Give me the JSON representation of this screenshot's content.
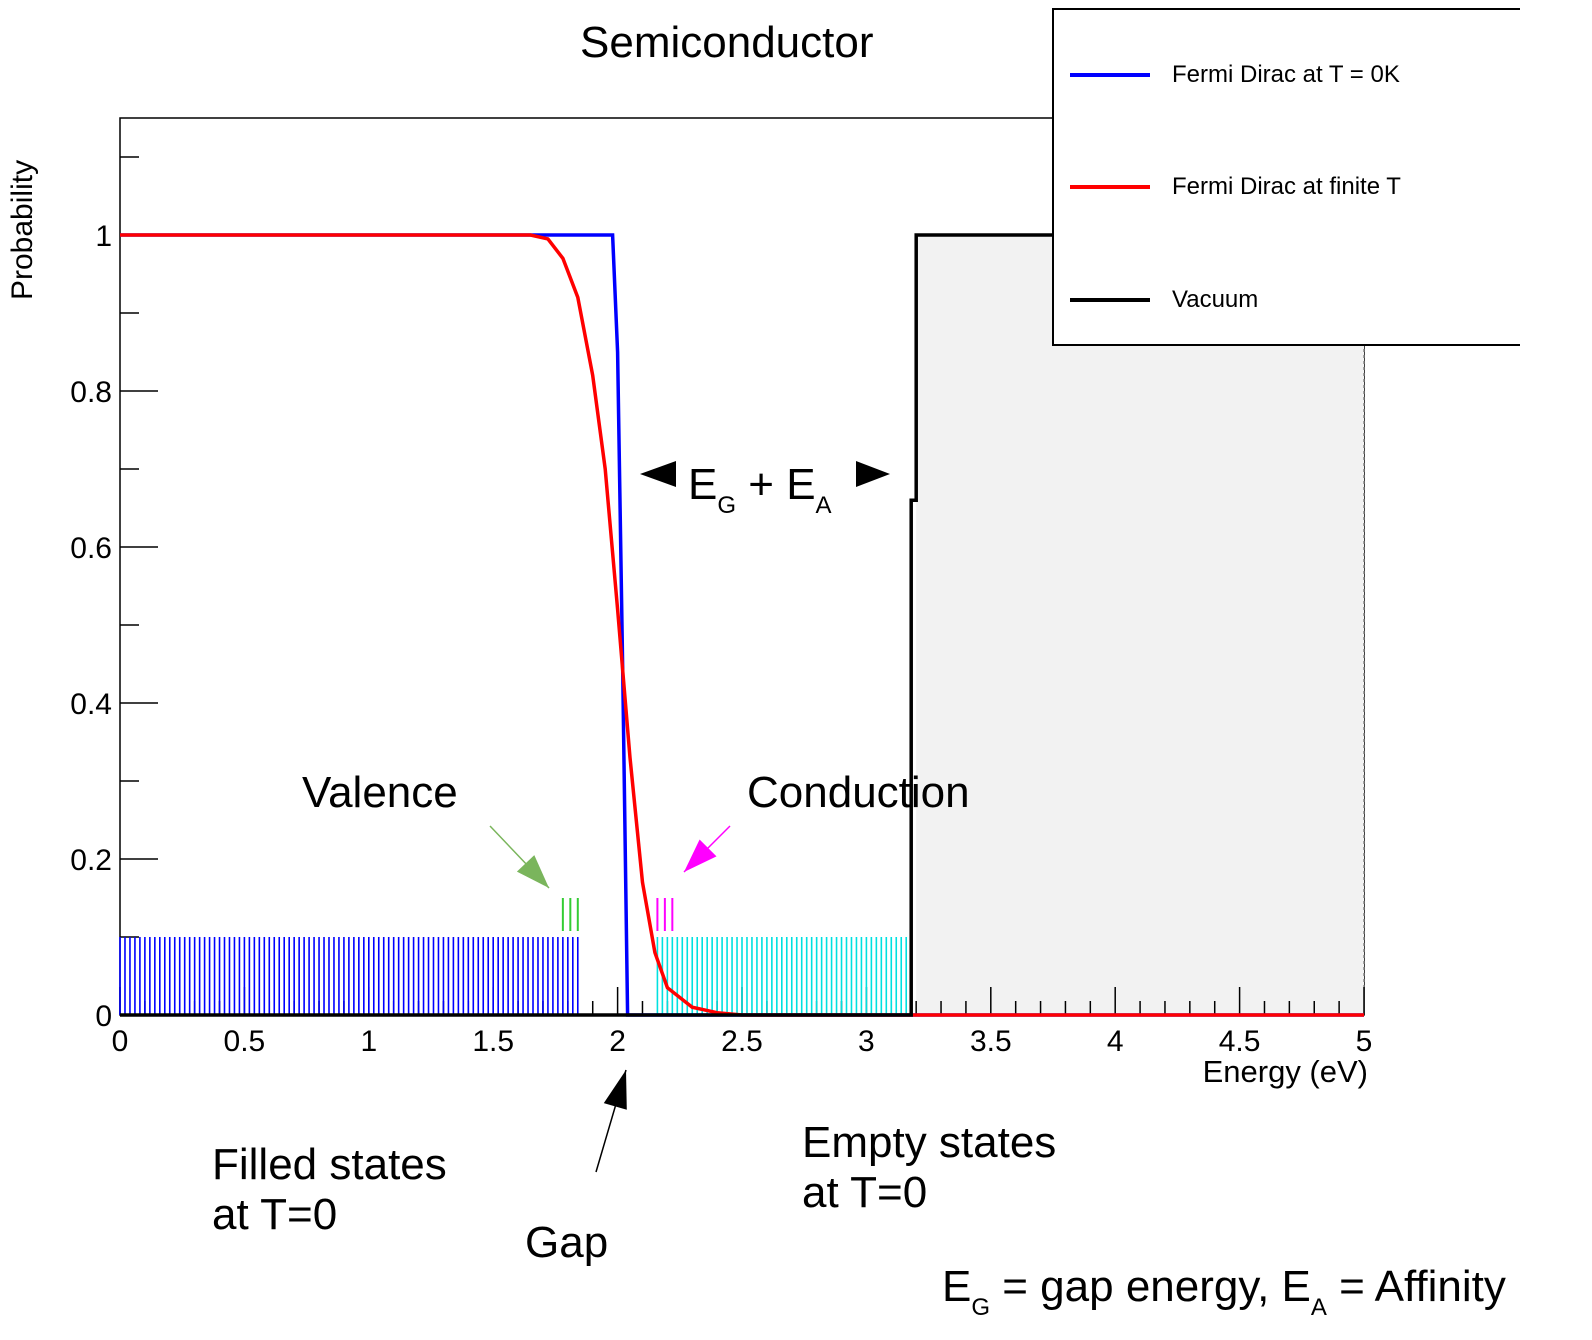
{
  "chart_data": {
    "type": "line",
    "title": "Semiconductor",
    "xlabel": "Energy (eV)",
    "ylabel": "Probability",
    "xlim": [
      0,
      5
    ],
    "ylim": [
      0,
      1.15
    ],
    "x_ticks": [
      "0",
      "0.5",
      "1",
      "1.5",
      "2",
      "2.5",
      "3",
      "3.5",
      "4",
      "4.5",
      "5"
    ],
    "y_ticks": [
      "0",
      "0.2",
      "0.4",
      "0.6",
      "0.8",
      "1"
    ],
    "legend_position": "top-right",
    "series": [
      {
        "name": "Fermi Dirac at T = 0K",
        "color": "#0000ff",
        "x": [
          0,
          1.98,
          2.0,
          2.02,
          2.04,
          5.0
        ],
        "y": [
          1,
          1,
          0.85,
          0.45,
          0,
          0
        ]
      },
      {
        "name": "Fermi Dirac at finite T",
        "color": "#ff0000",
        "x": [
          0,
          1.65,
          1.72,
          1.78,
          1.84,
          1.9,
          1.95,
          2.0,
          2.05,
          2.1,
          2.15,
          2.2,
          2.3,
          2.4,
          2.5,
          5.0
        ],
        "y": [
          1,
          1,
          0.995,
          0.97,
          0.92,
          0.82,
          0.7,
          0.52,
          0.33,
          0.17,
          0.08,
          0.035,
          0.01,
          0.003,
          0,
          0
        ]
      },
      {
        "name": "Vacuum",
        "color": "#000000",
        "x": [
          0,
          3.18,
          3.18,
          3.2,
          3.2,
          5.0
        ],
        "y": [
          0,
          0,
          0.66,
          0.66,
          1,
          1
        ]
      }
    ],
    "state_bands": {
      "filled_blue": {
        "color": "#0000ff",
        "x_start": 0,
        "x_end": 1.84,
        "height": 0.1
      },
      "empty_cyan": {
        "color": "#00e0e0",
        "x_start": 2.16,
        "x_end": 3.18,
        "height": 0.1
      },
      "valence_marks": {
        "color": "#33cc33",
        "x": [
          1.78,
          1.81,
          1.84
        ],
        "y_range": [
          0.1,
          0.15
        ]
      },
      "conduction_marks": {
        "color": "#ff00ff",
        "x": [
          2.16,
          2.19,
          2.22
        ],
        "y_range": [
          0.1,
          0.15
        ]
      }
    },
    "vacuum_region": {
      "x_start": 3.2,
      "x_end": 5.0,
      "y_max": 1.0,
      "fill": "#f2f2f2"
    },
    "annotations": {
      "valence": "Valence",
      "conduction": "Conduction",
      "filled_line1": "Filled states",
      "filled_line2": "at T=0",
      "empty_line1": "Empty states",
      "empty_line2": "at T=0",
      "gap": "Gap",
      "eg_e": "E",
      "eg_sub": "G",
      "plus": " + ",
      "ea_e": "E",
      "ea_sub": "A",
      "footer_e1": "E",
      "footer_sub1": "G",
      "footer_mid": " = gap energy,  ",
      "footer_e2": "E",
      "footer_sub2": "A",
      "footer_end": " = Affinity"
    }
  }
}
